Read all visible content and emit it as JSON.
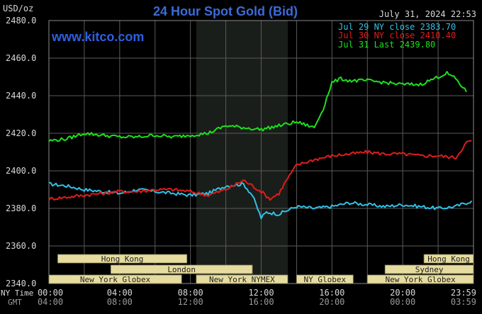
{
  "header": {
    "unit": "USD/oz",
    "title": "24 Hour Spot Gold (Bid)",
    "timestamp": "July 31, 2024 22:53",
    "website": "www.kitco.com"
  },
  "colors": {
    "background": "#000000",
    "title": "#3b6bd8",
    "website": "#2f5fe0",
    "grid": "#5a5a5a",
    "text": "#d8d8d8",
    "session_fill": "#e6dca0",
    "session_text": "#202020",
    "shaded_region": "#1a1e1a"
  },
  "legend": [
    {
      "label": "Jul 29 NY close 2383.70",
      "color": "#2fc2e6"
    },
    {
      "label": "Jul 30 NY close 2410.40",
      "color": "#e01c1c"
    },
    {
      "label": "Jul 31 Last 2439.80",
      "color": "#1ee01e"
    }
  ],
  "axis": {
    "y_ticks": [
      "2480.0",
      "2460.0",
      "2440.0",
      "2420.0",
      "2400.0",
      "2380.0",
      "2360.0",
      "2340.0"
    ],
    "ny_time_label": "NY Time",
    "gmt_label": "GMT",
    "ny_ticks": [
      "00:00",
      "04:00",
      "08:00",
      "12:00",
      "16:00",
      "20:00",
      "23:59"
    ],
    "gmt_ticks": [
      "04:00",
      "08:00",
      "12:00",
      "16:00",
      "20:00",
      "00:00",
      "03:59"
    ]
  },
  "sessions": [
    {
      "label": "Hong Kong",
      "start": 0.5,
      "end": 7.8,
      "row": 0
    },
    {
      "label": "Hong Kong",
      "start": 21.2,
      "end": 24.0,
      "row": 0
    },
    {
      "label": "London",
      "start": 3.5,
      "end": 11.5,
      "row": 1
    },
    {
      "label": "Sydney",
      "start": 19.0,
      "end": 24.0,
      "row": 1
    },
    {
      "label": "New York Globex",
      "start": 0.0,
      "end": 7.5,
      "row": 2
    },
    {
      "label": "New York NYMEX",
      "start": 8.33,
      "end": 13.5,
      "row": 2
    },
    {
      "label": "NY Globex",
      "start": 14.0,
      "end": 17.2,
      "row": 2
    },
    {
      "label": "New York Globex",
      "start": 18.0,
      "end": 24.0,
      "row": 2
    }
  ],
  "chart_data": {
    "type": "line",
    "title": "24 Hour Spot Gold (Bid)",
    "ylabel": "USD/oz",
    "xlabel": "NY Time / GMT",
    "ylim": [
      2340,
      2480
    ],
    "xlim_hours_ny": [
      0,
      24
    ],
    "shaded_period_ny_hours": [
      8.33,
      13.5
    ],
    "grid": true,
    "legend_position": "top-right",
    "series": [
      {
        "name": "Jul 29 NY close 2383.70",
        "color": "#2fc2e6",
        "points": [
          [
            0,
            2393
          ],
          [
            1,
            2392
          ],
          [
            2,
            2390
          ],
          [
            3,
            2389
          ],
          [
            4,
            2388
          ],
          [
            5,
            2390
          ],
          [
            6,
            2389
          ],
          [
            7,
            2388
          ],
          [
            8,
            2387
          ],
          [
            9,
            2388
          ],
          [
            10,
            2392
          ],
          [
            11,
            2393
          ],
          [
            11.5,
            2387
          ],
          [
            12,
            2375
          ],
          [
            12.3,
            2378
          ],
          [
            13,
            2377
          ],
          [
            14,
            2381
          ],
          [
            15,
            2380
          ],
          [
            16,
            2381
          ],
          [
            17,
            2383
          ],
          [
            18,
            2382
          ],
          [
            19,
            2381
          ],
          [
            20,
            2382
          ],
          [
            21,
            2381
          ],
          [
            22,
            2380
          ],
          [
            23,
            2381
          ],
          [
            23.9,
            2384
          ]
        ]
      },
      {
        "name": "Jul 30 NY close 2410.40",
        "color": "#e01c1c",
        "points": [
          [
            0,
            2385
          ],
          [
            1,
            2386
          ],
          [
            2,
            2387
          ],
          [
            3,
            2388
          ],
          [
            4,
            2389
          ],
          [
            5,
            2389
          ],
          [
            6,
            2390
          ],
          [
            7,
            2390
          ],
          [
            8,
            2389
          ],
          [
            9,
            2387
          ],
          [
            10,
            2390
          ],
          [
            11,
            2395
          ],
          [
            12,
            2389
          ],
          [
            12.5,
            2385
          ],
          [
            13,
            2388
          ],
          [
            13.5,
            2396
          ],
          [
            14,
            2403
          ],
          [
            15,
            2406
          ],
          [
            16,
            2408
          ],
          [
            17,
            2409
          ],
          [
            18,
            2410
          ],
          [
            19,
            2409
          ],
          [
            20,
            2409
          ],
          [
            21,
            2408
          ],
          [
            22,
            2408
          ],
          [
            23,
            2407
          ],
          [
            23.6,
            2415
          ],
          [
            23.9,
            2416
          ]
        ]
      },
      {
        "name": "Jul 31 Last 2439.80",
        "color": "#1ee01e",
        "points": [
          [
            0,
            2416
          ],
          [
            1,
            2417
          ],
          [
            2,
            2420
          ],
          [
            3,
            2419
          ],
          [
            4,
            2418
          ],
          [
            5,
            2418
          ],
          [
            6,
            2419
          ],
          [
            7,
            2418
          ],
          [
            8,
            2419
          ],
          [
            9,
            2420
          ],
          [
            10,
            2424
          ],
          [
            11,
            2423
          ],
          [
            12,
            2422
          ],
          [
            13,
            2424
          ],
          [
            14,
            2426
          ],
          [
            15,
            2423
          ],
          [
            15.5,
            2433
          ],
          [
            16,
            2447
          ],
          [
            16.5,
            2449
          ],
          [
            17,
            2448
          ],
          [
            18,
            2448
          ],
          [
            19,
            2447
          ],
          [
            20,
            2446
          ],
          [
            21,
            2446
          ],
          [
            22,
            2450
          ],
          [
            22.5,
            2452
          ],
          [
            23,
            2449
          ],
          [
            23.6,
            2442
          ]
        ]
      }
    ]
  }
}
